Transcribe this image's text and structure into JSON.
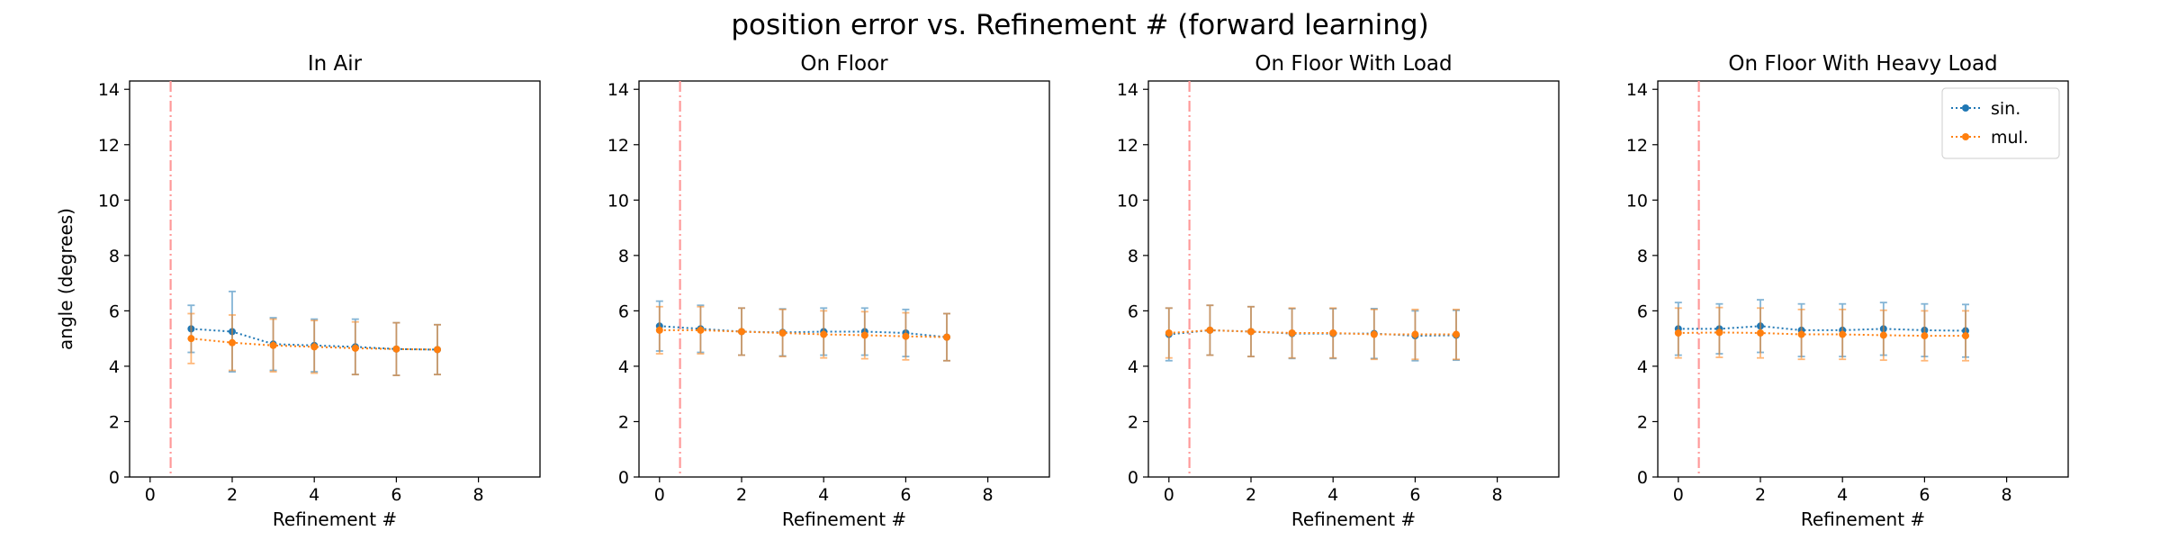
{
  "figure_title": "position error vs. Refinement # (forward learning)",
  "colors": {
    "sin": "#1f77b4",
    "mul": "#ff7f0e",
    "refline": "#ff9999",
    "axes": "#000000",
    "background": "#ffffff"
  },
  "chart_data": [
    {
      "type": "line",
      "title": "In Air",
      "xlabel": "Refinement #",
      "ylabel": "angle (degrees)",
      "xlim": [
        -0.5,
        9.5
      ],
      "ylim": [
        0,
        14.3
      ],
      "xticks": [
        0,
        2,
        4,
        6,
        8
      ],
      "yticks": [
        0,
        2,
        4,
        6,
        8,
        10,
        12,
        14
      ],
      "grid": false,
      "vline_x": 0.5,
      "legend": null,
      "series": [
        {
          "name": "sin.",
          "x": [
            1,
            2,
            3,
            4,
            5,
            6,
            7
          ],
          "values": [
            5.35,
            5.25,
            4.8,
            4.75,
            4.7,
            4.62,
            4.6
          ],
          "error": [
            0.85,
            1.45,
            0.95,
            0.95,
            1.0,
            0.95,
            0.9
          ]
        },
        {
          "name": "mul.",
          "x": [
            1,
            2,
            3,
            4,
            5,
            6,
            7
          ],
          "values": [
            5.0,
            4.85,
            4.75,
            4.7,
            4.65,
            4.62,
            4.6
          ],
          "error": [
            0.9,
            1.0,
            0.95,
            0.95,
            0.95,
            0.95,
            0.9
          ]
        }
      ]
    },
    {
      "type": "line",
      "title": "On Floor",
      "xlabel": "Refinement #",
      "ylabel": "",
      "xlim": [
        -0.5,
        9.5
      ],
      "ylim": [
        0,
        14.3
      ],
      "xticks": [
        0,
        2,
        4,
        6,
        8
      ],
      "yticks": [
        0,
        2,
        4,
        6,
        8,
        10,
        12,
        14
      ],
      "grid": false,
      "vline_x": 0.5,
      "legend": null,
      "series": [
        {
          "name": "sin.",
          "x": [
            0,
            1,
            2,
            3,
            4,
            5,
            6,
            7
          ],
          "values": [
            5.45,
            5.35,
            5.25,
            5.22,
            5.25,
            5.25,
            5.2,
            5.05
          ],
          "error": [
            0.9,
            0.85,
            0.85,
            0.85,
            0.85,
            0.85,
            0.85,
            0.85
          ]
        },
        {
          "name": "mul.",
          "x": [
            0,
            1,
            2,
            3,
            4,
            5,
            6,
            7
          ],
          "values": [
            5.3,
            5.3,
            5.25,
            5.2,
            5.15,
            5.12,
            5.08,
            5.05
          ],
          "error": [
            0.85,
            0.85,
            0.85,
            0.85,
            0.85,
            0.85,
            0.85,
            0.85
          ]
        }
      ]
    },
    {
      "type": "line",
      "title": "On Floor With Load",
      "xlabel": "Refinement #",
      "ylabel": "",
      "xlim": [
        -0.5,
        9.5
      ],
      "ylim": [
        0,
        14.3
      ],
      "xticks": [
        0,
        2,
        4,
        6,
        8
      ],
      "yticks": [
        0,
        2,
        4,
        6,
        8,
        10,
        12,
        14
      ],
      "grid": false,
      "vline_x": 0.5,
      "legend": null,
      "series": [
        {
          "name": "sin.",
          "x": [
            0,
            1,
            2,
            3,
            4,
            5,
            6,
            7
          ],
          "values": [
            5.15,
            5.3,
            5.25,
            5.18,
            5.18,
            5.18,
            5.1,
            5.12
          ],
          "error": [
            0.95,
            0.9,
            0.9,
            0.9,
            0.9,
            0.9,
            0.9,
            0.9
          ]
        },
        {
          "name": "mul.",
          "x": [
            0,
            1,
            2,
            3,
            4,
            5,
            6,
            7
          ],
          "values": [
            5.2,
            5.3,
            5.25,
            5.2,
            5.2,
            5.15,
            5.15,
            5.15
          ],
          "error": [
            0.9,
            0.9,
            0.9,
            0.9,
            0.9,
            0.9,
            0.9,
            0.9
          ]
        }
      ]
    },
    {
      "type": "line",
      "title": "On Floor With Heavy Load",
      "xlabel": "Refinement #",
      "ylabel": "",
      "xlim": [
        -0.5,
        9.5
      ],
      "ylim": [
        0,
        14.3
      ],
      "xticks": [
        0,
        2,
        4,
        6,
        8
      ],
      "yticks": [
        0,
        2,
        4,
        6,
        8,
        10,
        12,
        14
      ],
      "grid": false,
      "vline_x": 0.5,
      "legend": "top-right",
      "series": [
        {
          "name": "sin.",
          "x": [
            0,
            1,
            2,
            3,
            4,
            5,
            6,
            7
          ],
          "values": [
            5.35,
            5.35,
            5.45,
            5.3,
            5.3,
            5.35,
            5.3,
            5.28
          ],
          "error": [
            0.95,
            0.9,
            0.95,
            0.95,
            0.95,
            0.95,
            0.95,
            0.95
          ]
        },
        {
          "name": "mul.",
          "x": [
            0,
            1,
            2,
            3,
            4,
            5,
            6,
            7
          ],
          "values": [
            5.2,
            5.22,
            5.2,
            5.15,
            5.15,
            5.12,
            5.1,
            5.1
          ],
          "error": [
            0.9,
            0.9,
            0.9,
            0.9,
            0.9,
            0.9,
            0.9,
            0.9
          ]
        }
      ]
    }
  ]
}
